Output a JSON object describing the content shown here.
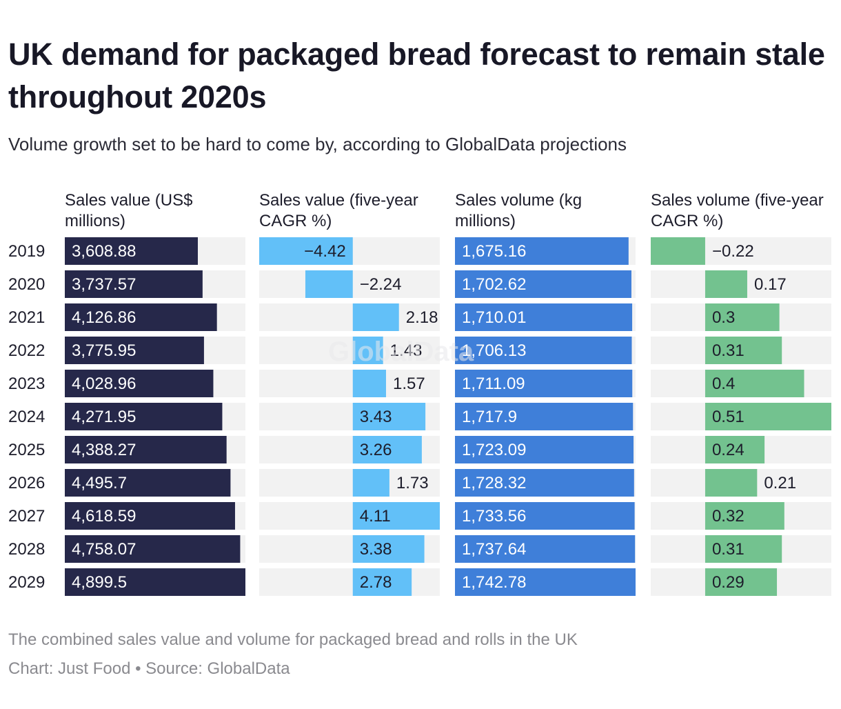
{
  "header": {
    "title": "UK demand for packaged bread forecast to remain stale throughout 2020s",
    "subtitle": "Volume growth set to be hard to come by, according to GlobalData projections"
  },
  "footer": {
    "note": "The combined sales value and volume for packaged bread and rolls in the UK",
    "credit_chart": "Chart: Just Food",
    "credit_separator": " • ",
    "credit_source": "Source: GlobalData"
  },
  "watermark": "GlobalData",
  "chart_data": {
    "type": "table",
    "rows": [
      "2019",
      "2020",
      "2021",
      "2022",
      "2023",
      "2024",
      "2025",
      "2026",
      "2027",
      "2028",
      "2029"
    ],
    "columns": [
      {
        "name": "Sales value (US$ millions)",
        "header_lines": [
          "Sales value (US$",
          "millions)"
        ],
        "values": [
          3608.88,
          3737.57,
          4126.86,
          3775.95,
          4028.96,
          4271.95,
          4388.27,
          4495.7,
          4618.59,
          4758.07,
          4899.5
        ],
        "labels": [
          "3,608.88",
          "3,737.57",
          "4,126.86",
          "3,775.95",
          "4,028.96",
          "4,271.95",
          "4,388.27",
          "4,495.7",
          "4,618.59",
          "4,758.07",
          "4,899.5"
        ],
        "domain": [
          0,
          4899.5
        ],
        "color": "#26284a",
        "label_color": "#ffffff"
      },
      {
        "name": "Sales value (five-year CAGR %)",
        "header_lines": [
          "Sales value (five-year",
          "CAGR %)"
        ],
        "values": [
          -4.42,
          -2.24,
          2.18,
          1.43,
          1.57,
          3.43,
          3.26,
          1.73,
          4.11,
          3.38,
          2.78
        ],
        "labels": [
          "−4.42",
          "−2.24",
          "2.18",
          "1.43",
          "1.57",
          "3.43",
          "3.26",
          "1.73",
          "4.11",
          "3.38",
          "2.78"
        ],
        "domain": [
          -4.42,
          4.11
        ],
        "color": "#62c0f8",
        "label_color": "#1d1d2b"
      },
      {
        "name": "Sales volume (kg millions)",
        "header_lines": [
          "Sales volume (kg",
          "millions)"
        ],
        "values": [
          1675.16,
          1702.62,
          1710.01,
          1706.13,
          1711.09,
          1717.9,
          1723.09,
          1728.32,
          1733.56,
          1737.64,
          1742.78
        ],
        "labels": [
          "1,675.16",
          "1,702.62",
          "1,710.01",
          "1,706.13",
          "1,711.09",
          "1,717.9",
          "1,723.09",
          "1,728.32",
          "1,733.56",
          "1,737.64",
          "1,742.78"
        ],
        "domain": [
          0,
          1742.78
        ],
        "color": "#3f7fd9",
        "label_color": "#ffffff"
      },
      {
        "name": "Sales volume (five-year CAGR %)",
        "header_lines": [
          "Sales volume (five-year",
          "CAGR %)"
        ],
        "values": [
          -0.22,
          0.17,
          0.3,
          0.31,
          0.4,
          0.51,
          0.24,
          0.21,
          0.32,
          0.31,
          0.29
        ],
        "labels": [
          "−0.22",
          "0.17",
          "0.3",
          "0.31",
          "0.4",
          "0.51",
          "0.24",
          "0.21",
          "0.32",
          "0.31",
          "0.29"
        ],
        "domain": [
          -0.22,
          0.51
        ],
        "color": "#73c28f",
        "label_color": "#1d1d2b"
      }
    ],
    "background_color": "#f2f2f2"
  }
}
